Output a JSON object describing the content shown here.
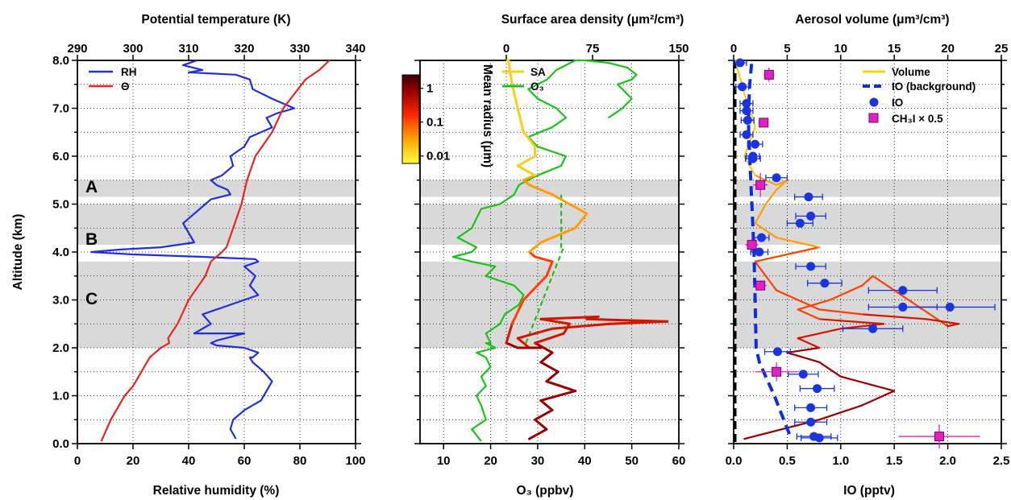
{
  "chart_data": [
    {
      "panel": "left",
      "type": "line",
      "top_axis": {
        "title": "Potential temperature (K)",
        "range": [
          290,
          340
        ],
        "ticks": [
          "290",
          "300",
          "310",
          "320",
          "330",
          "340"
        ]
      },
      "bottom_axis": {
        "title": "Relative humidity (%)",
        "range": [
          0,
          100
        ],
        "ticks": [
          "0",
          "20",
          "40",
          "60",
          "80",
          "100"
        ]
      },
      "y_axis": {
        "title": "Altitude (km)",
        "range": [
          0,
          8
        ],
        "ticks": [
          "0.0",
          "1.0",
          "2.0",
          "3.0",
          "4.0",
          "5.0",
          "6.0",
          "7.0",
          "8.0"
        ]
      },
      "legend": [
        "RH",
        "Θ"
      ],
      "layer_labels": [
        "A",
        "B",
        "C"
      ],
      "series": [
        {
          "name": "RH",
          "color": "#1f2fe0",
          "axis": "bottom",
          "x": [
            57,
            55,
            56,
            60,
            66,
            68,
            70,
            67,
            65,
            63,
            62,
            63,
            65,
            60,
            50,
            48,
            50,
            60,
            42,
            48,
            45,
            55,
            65,
            62,
            64,
            62,
            60,
            65,
            64,
            45,
            20,
            5,
            15,
            30,
            42,
            40,
            38,
            42,
            46,
            48,
            55,
            54,
            50,
            48,
            52,
            56,
            55,
            60,
            62,
            70,
            68,
            72,
            78,
            74,
            70,
            63,
            62,
            57,
            40,
            45,
            38,
            43
          ],
          "y": [
            0.1,
            0.3,
            0.5,
            0.7,
            0.9,
            1.1,
            1.3,
            1.5,
            1.6,
            1.7,
            1.8,
            1.8,
            1.9,
            2.0,
            2.05,
            2.1,
            2.15,
            2.3,
            2.3,
            2.5,
            2.7,
            2.9,
            3.1,
            3.3,
            3.5,
            3.6,
            3.7,
            3.8,
            3.85,
            3.9,
            3.95,
            4.0,
            4.05,
            4.1,
            4.2,
            4.4,
            4.6,
            4.8,
            5.0,
            5.1,
            5.2,
            5.3,
            5.4,
            5.5,
            5.6,
            5.8,
            6.0,
            6.2,
            6.4,
            6.6,
            6.8,
            6.9,
            7.0,
            7.1,
            7.2,
            7.4,
            7.6,
            7.7,
            7.75,
            7.8,
            7.9,
            8.0
          ]
        },
        {
          "name": "Θ",
          "color": "#e8261e",
          "axis": "top",
          "x": [
            294.3,
            296,
            298.5,
            300,
            301.5,
            303,
            305,
            306.5,
            306.3,
            308,
            310,
            313,
            314,
            316,
            316.8,
            318,
            319.5,
            320.5,
            322,
            325,
            327,
            329,
            331,
            333.5,
            335.3
          ],
          "y": [
            0.05,
            0.5,
            1.0,
            1.2,
            1.5,
            1.8,
            2.0,
            2.1,
            2.2,
            2.5,
            3.0,
            3.5,
            3.8,
            4.0,
            4.1,
            4.5,
            5.0,
            5.5,
            6.0,
            6.5,
            7.0,
            7.3,
            7.6,
            7.8,
            8.0
          ]
        }
      ]
    },
    {
      "panel": "middle",
      "type": "line",
      "top_axis": {
        "title": "Surface area density (μm²/cm³)",
        "range": [
          -75,
          150
        ],
        "ticks": [
          "0",
          "75",
          "150"
        ]
      },
      "bottom_axis": {
        "title": "O₃ (ppbv)",
        "range": [
          5,
          60
        ],
        "ticks": [
          "10",
          "20",
          "30",
          "40",
          "50",
          "60"
        ]
      },
      "y_axis": {
        "range": [
          0,
          8
        ]
      },
      "legend": [
        "SA",
        "O₃"
      ],
      "colorbar": {
        "title": "Mean radius (μm)",
        "ticks": [
          "1",
          "0.1",
          "0.01"
        ],
        "range": [
          0.006,
          2.5
        ],
        "scale": "log"
      },
      "series": [
        {
          "name": "O₃",
          "color": "#18c418",
          "axis": "bottom",
          "x": [
            18,
            16,
            19,
            18,
            17,
            19,
            18,
            20,
            19,
            17,
            21,
            20,
            19,
            20,
            19,
            22,
            23,
            26,
            27,
            25,
            19,
            21,
            16,
            12,
            16,
            17,
            13,
            16,
            17,
            18,
            22,
            25,
            26,
            30,
            35,
            36,
            30,
            28,
            33,
            36,
            34,
            30,
            28,
            32,
            34,
            38,
            40,
            45,
            49,
            51,
            50,
            47,
            48,
            50,
            48,
            45
          ],
          "y": [
            0.05,
            0.3,
            0.5,
            0.8,
            1.0,
            1.2,
            1.4,
            1.6,
            1.8,
            1.9,
            2.0,
            2.05,
            2.1,
            2.1,
            2.3,
            2.5,
            2.7,
            2.9,
            3.1,
            3.3,
            3.5,
            3.7,
            3.8,
            3.9,
            4.0,
            4.1,
            4.3,
            4.5,
            4.7,
            4.9,
            5.0,
            5.2,
            5.4,
            5.6,
            5.8,
            6.0,
            6.2,
            6.4,
            6.6,
            6.8,
            7.0,
            7.2,
            7.4,
            7.6,
            7.8,
            8.0,
            8.0,
            7.95,
            7.85,
            7.7,
            7.6,
            7.5,
            7.4,
            7.2,
            7.0,
            6.8
          ]
        },
        {
          "name": "O₃ interpolation",
          "color": "#18c418",
          "dashed": true,
          "axis": "bottom",
          "x": [
            27.5,
            35.5,
            35,
            35
          ],
          "y": [
            2.1,
            4.1,
            4.1,
            5.2
          ]
        },
        {
          "name": "SA",
          "axis": "top",
          "colored_by_radius": true,
          "x": [
            20,
            35,
            25,
            40,
            30,
            60,
            35,
            45,
            30,
            40,
            25,
            50,
            55,
            30,
            80,
            70,
            140,
            90,
            40,
            25,
            10,
            20,
            30,
            10,
            0,
            5,
            15,
            35,
            40,
            25,
            20,
            30,
            60,
            70,
            55,
            40,
            20,
            15,
            25,
            10,
            25,
            25,
            15,
            10,
            5,
            3,
            2,
            1
          ],
          "y": [
            0.1,
            0.3,
            0.5,
            0.7,
            0.9,
            1.1,
            1.3,
            1.5,
            1.7,
            1.9,
            2.1,
            2.3,
            2.5,
            2.6,
            2.65,
            2.6,
            2.55,
            2.5,
            2.4,
            2.3,
            2.2,
            2.0,
            2.0,
            2.0,
            2.1,
            2.5,
            3.0,
            3.5,
            3.8,
            3.9,
            4.0,
            4.2,
            4.5,
            4.8,
            5.0,
            5.2,
            5.4,
            5.5,
            5.6,
            5.8,
            6.0,
            6.2,
            6.5,
            7.0,
            7.5,
            7.8,
            8.0,
            8.0
          ]
        }
      ]
    },
    {
      "panel": "right",
      "type": "scatter",
      "top_axis": {
        "title": "Aerosol volume (μm³/cm³)",
        "range": [
          0,
          25
        ],
        "ticks": [
          "0",
          "5",
          "10",
          "15",
          "20",
          "25"
        ]
      },
      "bottom_axis": {
        "title": "IO (pptv)",
        "range": [
          0,
          2.5
        ],
        "ticks": [
          "0.0",
          "0.5",
          "1.0",
          "1.5",
          "2.0",
          "2.5"
        ]
      },
      "y_axis": {
        "range": [
          0,
          8
        ]
      },
      "legend": [
        "Volume",
        "IO (background)",
        "IO",
        "CH₃I  × 0.5"
      ],
      "series": [
        {
          "name": "Volume",
          "axis": "top",
          "colored_by_radius": true,
          "x": [
            1,
            8,
            12,
            15,
            10,
            8,
            5,
            8,
            6,
            10,
            14,
            8,
            6,
            9,
            12,
            13,
            20,
            21,
            18,
            12,
            8,
            6,
            4,
            3,
            2,
            4,
            6,
            8,
            4,
            2,
            3,
            4,
            5,
            4,
            2,
            1.5,
            1,
            1.5,
            2,
            1.5,
            1,
            0.8,
            0.5,
            0.3,
            0.2
          ],
          "y": [
            0.1,
            0.5,
            0.8,
            1.1,
            1.4,
            1.7,
            1.9,
            2.0,
            2.2,
            2.4,
            2.5,
            2.6,
            2.8,
            3.0,
            3.3,
            3.5,
            2.45,
            2.5,
            2.6,
            2.7,
            2.8,
            3.0,
            3.2,
            3.5,
            3.8,
            3.9,
            4.0,
            4.1,
            4.3,
            4.6,
            5.0,
            5.3,
            5.5,
            5.4,
            5.6,
            5.8,
            6.0,
            6.3,
            6.6,
            7.0,
            7.3,
            7.5,
            7.7,
            7.9,
            8.0
          ]
        },
        {
          "name": "IO (background)",
          "color": "#0b2ee0",
          "axis": "bottom",
          "dashed": true,
          "x": [
            0.52,
            0.45,
            0.38,
            0.3,
            0.24,
            0.21,
            0.2,
            0.19,
            0.18,
            0.17,
            0.16,
            0.15,
            0.14,
            0.14,
            0.15,
            0.17
          ],
          "y": [
            0.2,
            0.6,
            1.0,
            1.4,
            1.7,
            2.0,
            3.0,
            4.0,
            4.5,
            5.0,
            5.5,
            6.0,
            6.5,
            7.0,
            7.5,
            8.0
          ]
        },
        {
          "name": "IO",
          "color": "#1a35e0",
          "axis": "bottom",
          "x": [
            0.06,
            0.08,
            0.12,
            0.12,
            0.13,
            0.12,
            0.2,
            0.18,
            0.18,
            0.4,
            0.7,
            0.72,
            0.62,
            0.26,
            0.24,
            0.72,
            0.85,
            1.58,
            1.58,
            2.02,
            1.3,
            0.41,
            0.65,
            0.78,
            0.72,
            0.72,
            0.75,
            0.8
          ],
          "y": [
            7.95,
            7.45,
            7.1,
            6.95,
            6.75,
            6.45,
            6.25,
            6.0,
            5.95,
            5.55,
            5.15,
            4.75,
            4.6,
            4.3,
            4.0,
            3.7,
            3.35,
            3.2,
            2.85,
            2.85,
            2.4,
            1.92,
            1.45,
            1.15,
            0.75,
            0.45,
            0.15,
            0.12
          ],
          "xerr": [
            0.06,
            0.06,
            0.06,
            0.06,
            0.06,
            0.06,
            0.07,
            0.06,
            0.07,
            0.1,
            0.13,
            0.14,
            0.12,
            0.07,
            0.08,
            0.14,
            0.16,
            0.32,
            0.32,
            0.42,
            0.28,
            0.12,
            0.14,
            0.16,
            0.15,
            0.15,
            0.16,
            0.17
          ]
        },
        {
          "name": "CH₃I  × 0.5",
          "color": "#e020c0",
          "axis": "bottom",
          "x": [
            0.33,
            0.28,
            0.25,
            0.17,
            0.25,
            0.4,
            1.92
          ],
          "y": [
            7.7,
            6.7,
            5.4,
            4.15,
            3.3,
            1.5,
            0.15
          ],
          "xerr": [
            0.05,
            0.04,
            0.07,
            0.06,
            0.06,
            0.2,
            0.38
          ],
          "yerr": [
            0.15,
            0.1,
            0.25,
            0.15,
            0.1,
            0.2,
            0.25
          ]
        }
      ]
    }
  ],
  "colors": {
    "rh": "#1f2fe0",
    "theta": "#e8261e",
    "o3": "#18c418",
    "sa_legend": "#f5d400",
    "io": "#1a35e0",
    "ch3i": "#e020c0",
    "band": "#d9d9d9"
  }
}
